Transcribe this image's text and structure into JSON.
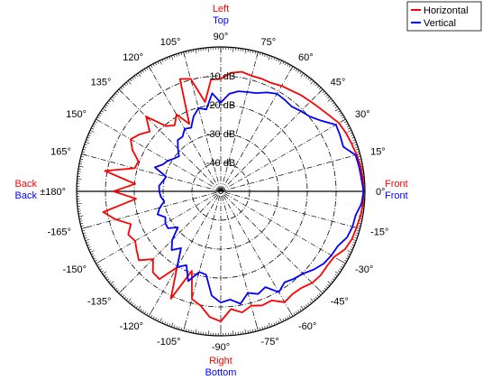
{
  "chart_data": {
    "type": "polar",
    "angle_unit": "deg",
    "radial_unit": "dB",
    "radial_range": [
      -50,
      0
    ],
    "ring_labels": [
      "-10 dB",
      "-20 dB",
      "-30 dB",
      "-40 dB"
    ],
    "ring_values": [
      -10,
      -20,
      -30,
      -40
    ],
    "angle_ticks": [
      {
        "angle": 0,
        "label": "0°"
      },
      {
        "angle": 15,
        "label": "15°"
      },
      {
        "angle": 30,
        "label": "30°"
      },
      {
        "angle": 45,
        "label": "45°"
      },
      {
        "angle": 60,
        "label": "60°"
      },
      {
        "angle": 75,
        "label": "75°"
      },
      {
        "angle": 90,
        "label": "90°"
      },
      {
        "angle": 105,
        "label": "105°"
      },
      {
        "angle": 120,
        "label": "120°"
      },
      {
        "angle": 135,
        "label": "135°"
      },
      {
        "angle": 150,
        "label": "150°"
      },
      {
        "angle": 165,
        "label": "165°"
      },
      {
        "angle": 180,
        "label": "±180°"
      },
      {
        "angle": -165,
        "label": "-165°"
      },
      {
        "angle": -150,
        "label": "-150°"
      },
      {
        "angle": -135,
        "label": "-135°"
      },
      {
        "angle": -120,
        "label": "-120°"
      },
      {
        "angle": -105,
        "label": "-105°"
      },
      {
        "angle": -90,
        "label": "-90°"
      },
      {
        "angle": -75,
        "label": "-75°"
      },
      {
        "angle": -60,
        "label": "-60°"
      },
      {
        "angle": -45,
        "label": "-45°"
      },
      {
        "angle": -30,
        "label": "-30°"
      },
      {
        "angle": -15,
        "label": "-15°"
      }
    ],
    "direction_labels": {
      "top": {
        "horizontal": "Left",
        "vertical": "Top"
      },
      "bottom": {
        "horizontal": "Right",
        "vertical": "Bottom"
      },
      "left": {
        "horizontal": "Back",
        "vertical": "Back"
      },
      "right": {
        "horizontal": "Front",
        "vertical": "Front"
      }
    },
    "legend_position": "top-right",
    "series": [
      {
        "name": "Horizontal",
        "color": "#ff0000",
        "angles": [
          0,
          5,
          10,
          15,
          20,
          25,
          30,
          35,
          40,
          45,
          50,
          55,
          60,
          65,
          70,
          75,
          80,
          85,
          90,
          95,
          100,
          105,
          110,
          115,
          120,
          125,
          130,
          135,
          140,
          145,
          150,
          155,
          160,
          165,
          170,
          175,
          180,
          185,
          190,
          195,
          200,
          205,
          210,
          215,
          220,
          225,
          230,
          235,
          240,
          245,
          250,
          255,
          260,
          265,
          270,
          275,
          280,
          285,
          290,
          295,
          300,
          305,
          310,
          315,
          320,
          325,
          330,
          335,
          340,
          345,
          350,
          355
        ],
        "values": [
          -0.5,
          -0.5,
          -0.7,
          -1.2,
          -1.7,
          -2.1,
          -2.7,
          -4.1,
          -5.2,
          -6.0,
          -6.6,
          -7.4,
          -7.8,
          -8.6,
          -8.5,
          -8.6,
          -8.0,
          -8.8,
          -11.1,
          -11.1,
          -18.6,
          -9.7,
          -8.6,
          -24.2,
          -19.3,
          -22.1,
          -20.5,
          -13.4,
          -17.8,
          -15.6,
          -13.9,
          -16.2,
          -19.6,
          -19.1,
          -9.2,
          -20.2,
          -12.8,
          -20.5,
          -8.6,
          -12.3,
          -16.8,
          -14.6,
          -15.7,
          -14.4,
          -12.9,
          -16.8,
          -13.4,
          -12.9,
          -19.6,
          -9.0,
          -20.7,
          -11.4,
          -9.8,
          -6.3,
          -5.0,
          -9.1,
          -7.4,
          -9.0,
          -8.0,
          -8.3,
          -5.7,
          -6.6,
          -6.4,
          -5.2,
          -4.8,
          -5.0,
          -4.6,
          -2.5,
          -1.6,
          -1.3,
          -0.8,
          -0.5
        ]
      },
      {
        "name": "Vertical",
        "color": "#0000ff",
        "angles": [
          0,
          5,
          10,
          15,
          20,
          25,
          30,
          35,
          40,
          45,
          50,
          55,
          60,
          65,
          70,
          75,
          80,
          85,
          90,
          95,
          100,
          105,
          110,
          115,
          120,
          125,
          130,
          135,
          140,
          145,
          150,
          155,
          160,
          165,
          170,
          175,
          180,
          185,
          190,
          195,
          200,
          205,
          210,
          215,
          220,
          225,
          230,
          235,
          240,
          245,
          250,
          255,
          260,
          265,
          270,
          275,
          280,
          285,
          290,
          295,
          300,
          305,
          310,
          315,
          320,
          325,
          330,
          335,
          340,
          345,
          350,
          355
        ],
        "values": [
          -0.5,
          -1.0,
          -1.3,
          -1.6,
          -4.8,
          -4.3,
          -3.9,
          -7.4,
          -9.7,
          -10.7,
          -11.7,
          -11.3,
          -11.0,
          -12.2,
          -13.8,
          -14.4,
          -14.8,
          -16.1,
          -19.3,
          -15.9,
          -21.2,
          -20.2,
          -22.4,
          -25.7,
          -25.0,
          -26.9,
          -26.8,
          -29.0,
          -31.1,
          -30.2,
          -28.8,
          -27.9,
          -25.7,
          -30.4,
          -29.6,
          -28.5,
          -28.7,
          -29.1,
          -30.1,
          -28.1,
          -26.7,
          -28.8,
          -27.8,
          -27.7,
          -30.6,
          -26.2,
          -23.5,
          -26.0,
          -19.7,
          -21.8,
          -16.9,
          -21.1,
          -20.7,
          -13.8,
          -11.5,
          -12.4,
          -10.5,
          -13.6,
          -12.2,
          -13.4,
          -9.7,
          -11.5,
          -10.5,
          -9.7,
          -7.9,
          -6.4,
          -5.7,
          -5.2,
          -3.4,
          -2.7,
          -2.5,
          -1.0
        ]
      }
    ]
  }
}
